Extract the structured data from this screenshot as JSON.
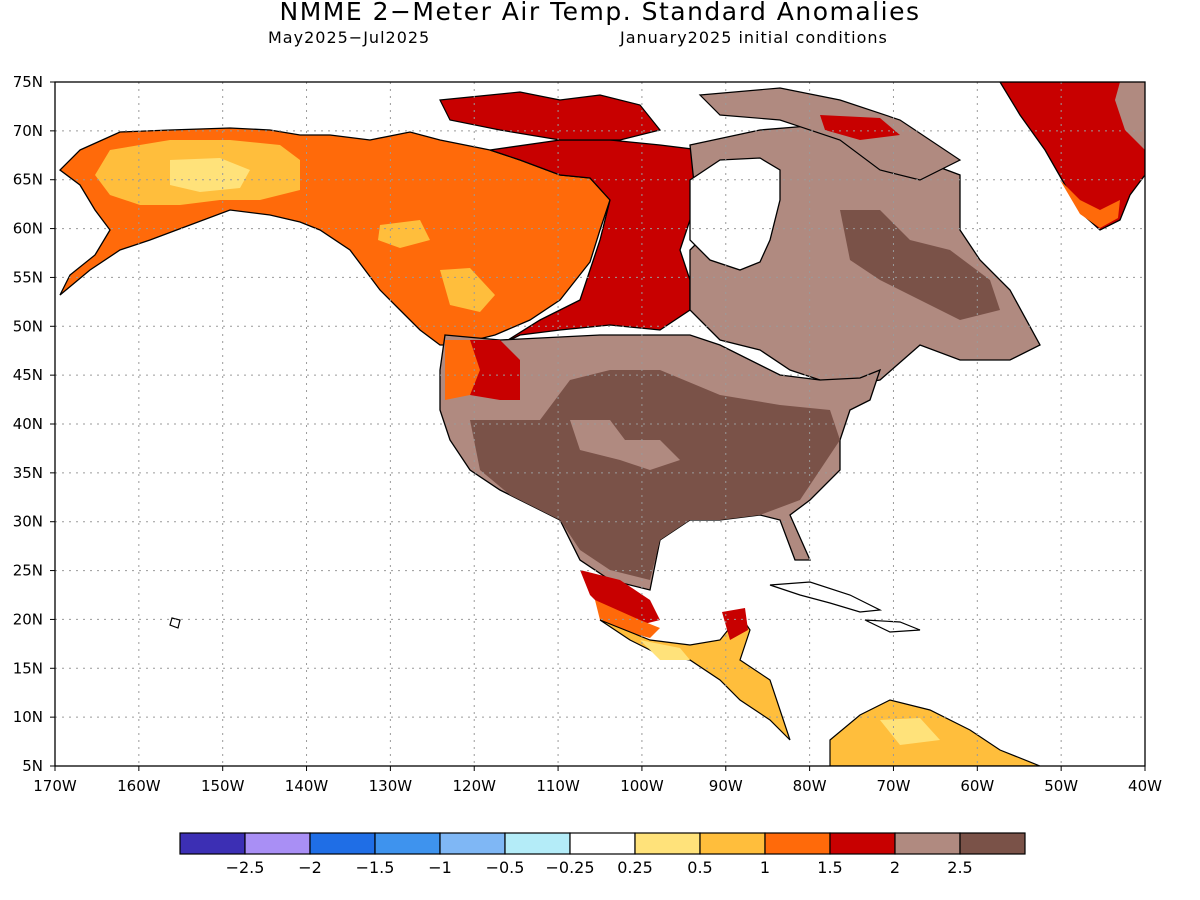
{
  "title": "NMME 2−Meter Air Temp. Standard Anomalies",
  "subtitle_left": "May2025−Jul2025",
  "subtitle_right": "January2025 initial conditions",
  "lat_labels": [
    "75N",
    "70N",
    "65N",
    "60N",
    "55N",
    "50N",
    "45N",
    "40N",
    "35N",
    "30N",
    "25N",
    "20N",
    "15N",
    "10N",
    "5N"
  ],
  "lon_labels": [
    "170W",
    "160W",
    "150W",
    "140W",
    "130W",
    "120W",
    "110W",
    "100W",
    "90W",
    "80W",
    "70W",
    "60W",
    "50W",
    "40W"
  ],
  "colorbar": {
    "colors": [
      "#3c2fb4",
      "#a98ff5",
      "#1f6ee6",
      "#3e93ee",
      "#7fb7f5",
      "#b4ecf8",
      "#ffffff",
      "#ffe27a",
      "#ffbe3c",
      "#ff6a0a",
      "#c80000",
      "#b08a80",
      "#7a5248"
    ],
    "labels": [
      "−2.5",
      "−2",
      "−1.5",
      "−1",
      "−0.5",
      "−0.25",
      "0.25",
      "0.5",
      "1",
      "1.5",
      "2",
      "2.5"
    ]
  },
  "map_colors": {
    "land_neutral": "#ffffff",
    "anom_0_5": "#ffe27a",
    "anom_1": "#ffbe3c",
    "anom_1_5": "#ff6a0a",
    "anom_2": "#c80000",
    "anom_2_5": "#b08a80",
    "anom_gt_2_5": "#7a5248"
  }
}
